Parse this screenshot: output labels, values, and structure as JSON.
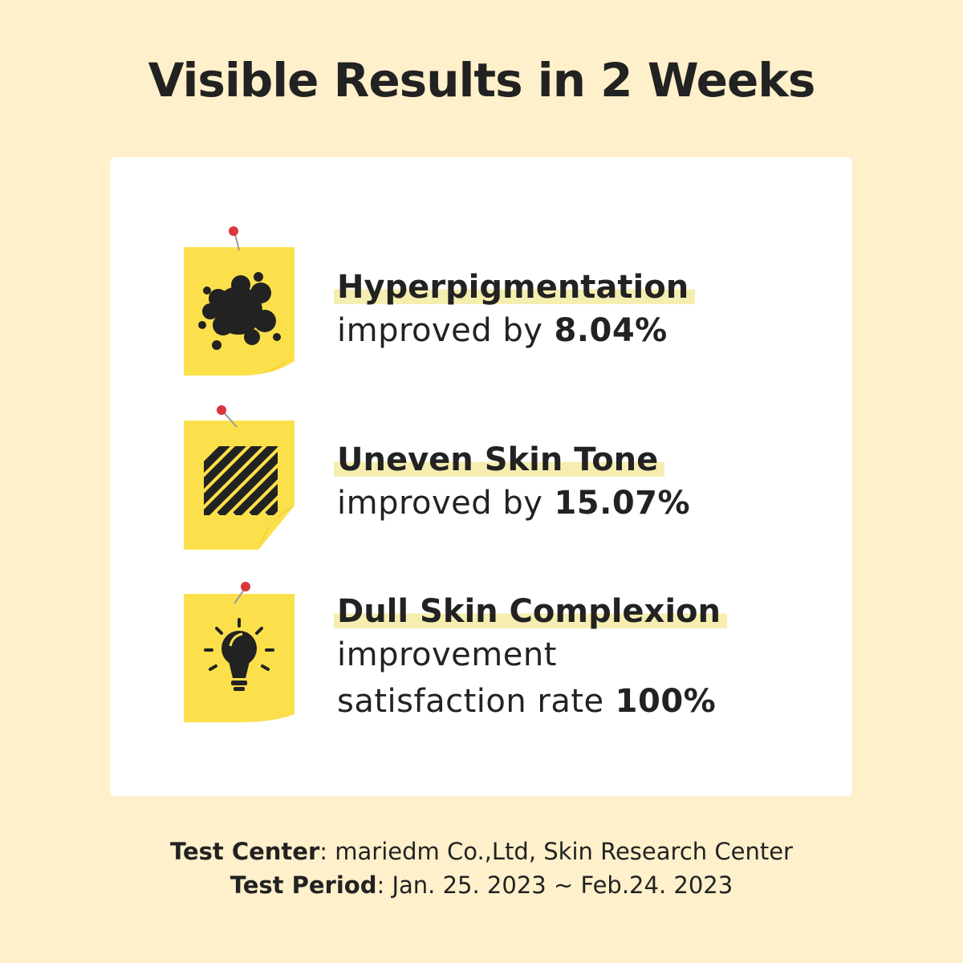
{
  "header": {
    "title": "Visible Results in 2 Weeks"
  },
  "items": [
    {
      "heading": "Hyperpigmentation",
      "lines": [
        "improved by"
      ],
      "value": "8.04%"
    },
    {
      "heading": "Uneven Skin Tone",
      "lines": [
        "improved by"
      ],
      "value": "15.07%"
    },
    {
      "heading": "Dull Skin Complexion",
      "lines": [
        "improvement",
        "satisfaction rate"
      ],
      "value": "100%"
    }
  ],
  "footer": {
    "lines": [
      {
        "label": "Test Center",
        "text": ": mariedm Co.,Ltd, Skin Research Center"
      },
      {
        "label": "Test Period",
        "text": ": Jan. 25. 2023 ~ Feb.24. 2023"
      }
    ]
  }
}
